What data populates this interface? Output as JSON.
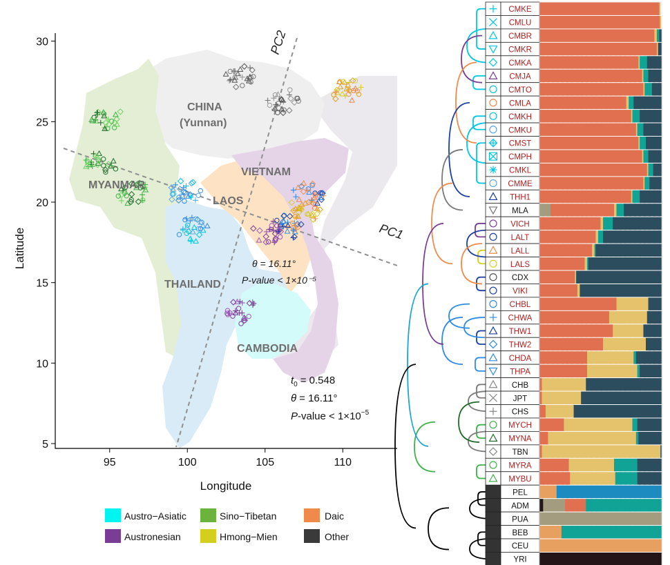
{
  "map": {
    "countries": [
      "CHINA",
      "(Yunnan)",
      "MYANMAR",
      "LAOS",
      "VIETNAM",
      "THAILAND",
      "CAMBODIA"
    ],
    "axis_labels": {
      "pc1": "PC1",
      "pc2": "PC2"
    },
    "inner_stats": {
      "theta": "θ = 16.11°",
      "pvalue": "P-value < 1×10⁻⁵"
    },
    "stats": {
      "t0": "= 0.548",
      "theta": "= 16.11°",
      "pvalue": "-value < 1×10",
      "pvalue_exp": "−5"
    }
  },
  "chart_data": {
    "type": "scatter",
    "title": "",
    "xlabel": "Longitude",
    "ylabel": "Latitude",
    "xlim": [
      91.5,
      113.5
    ],
    "ylim": [
      4.7,
      30.5
    ],
    "xticks": [
      95,
      100,
      105,
      110
    ],
    "yticks": [
      5,
      10,
      15,
      20,
      25,
      30
    ],
    "sample_clusters": [
      {
        "group": "Sino-Tibetan",
        "lon": 94.8,
        "lat": 25.3
      },
      {
        "group": "Sino-Tibetan",
        "lon": 94.5,
        "lat": 22.4
      },
      {
        "group": "Sino-Tibetan",
        "lon": 96.5,
        "lat": 20.6
      },
      {
        "group": "Other",
        "lon": 103.5,
        "lat": 27.8
      },
      {
        "group": "Other",
        "lon": 106.1,
        "lat": 26.3
      },
      {
        "group": "Austro-Asiatic",
        "lon": 99.8,
        "lat": 20.6
      },
      {
        "group": "Austro-Asiatic",
        "lon": 100.4,
        "lat": 18.3
      },
      {
        "group": "Austronesian",
        "lon": 103.6,
        "lat": 13.2
      },
      {
        "group": "Austronesian",
        "lon": 105.2,
        "lat": 18.2
      },
      {
        "group": "Daic",
        "lon": 106.5,
        "lat": 18.5
      },
      {
        "group": "Daic",
        "lon": 107.8,
        "lat": 20.5
      },
      {
        "group": "Hmong-Mien",
        "lon": 110.2,
        "lat": 27.0
      },
      {
        "group": "Hmong-Mien",
        "lon": 107.5,
        "lat": 19.5
      }
    ],
    "admixture": {
      "populations": [
        "CMKE",
        "CMLU",
        "CMBR",
        "CMKR",
        "CMKA",
        "CMJA",
        "CMTO",
        "CMLA",
        "CMKH",
        "CMKU",
        "CMST",
        "CMPH",
        "CMKL",
        "CMME",
        "THH1",
        "MLA",
        "VICH",
        "LALT",
        "LALL",
        "LALS",
        "CDX",
        "VIKI",
        "CHBL",
        "CHWA",
        "THW1",
        "THW2",
        "CHDA",
        "THPA",
        "CHB",
        "JPT",
        "CHS",
        "MYCH",
        "MYNA",
        "TBN",
        "MYRA",
        "MYBU",
        "PEL",
        "ADM",
        "PUA",
        "BEB",
        "CEU",
        "YRI"
      ]
    }
  },
  "legend": {
    "items": [
      {
        "label": "Austro−Asiatic",
        "color": "#00f5f0"
      },
      {
        "label": "Sino−Tibetan",
        "color": "#6cb33e"
      },
      {
        "label": "Daic",
        "color": "#f08a4b"
      },
      {
        "label": "Austronesian",
        "color": "#7a3d96"
      },
      {
        "label": "Hmong−Mien",
        "color": "#d4cf1f"
      },
      {
        "label": "Other",
        "color": "#3a3a3a"
      }
    ]
  },
  "colors": {
    "daic_bar": "#e07050",
    "hm_bar": "#e5c36c",
    "other_bar": "#2c4d5e",
    "teal": "#10a396",
    "khaki": "#a39c7e",
    "blue": "#1c8cc0",
    "dark": "#241618",
    "red_text": "#b21f1f"
  },
  "tree": {
    "rows": [
      {
        "code": "CMKE",
        "red": true,
        "sym": "+",
        "col": "#00c8e0"
      },
      {
        "code": "CMLU",
        "red": true,
        "sym": "x",
        "col": "#00c8e0"
      },
      {
        "code": "CMBR",
        "red": true,
        "sym": "tri",
        "col": "#00c8e0"
      },
      {
        "code": "CMKR",
        "red": true,
        "sym": "itri",
        "col": "#00c8e0"
      },
      {
        "code": "CMKA",
        "red": true,
        "sym": "dia",
        "col": "#00c8e0"
      },
      {
        "code": "CMJA",
        "red": true,
        "sym": "tri",
        "col": "#7a3d96"
      },
      {
        "code": "CMTO",
        "red": true,
        "sym": "o",
        "col": "#00c8e0"
      },
      {
        "code": "CMLA",
        "red": true,
        "sym": "o",
        "col": "#f08a4b"
      },
      {
        "code": "CMKH",
        "red": true,
        "sym": "o",
        "col": "#00c8e0"
      },
      {
        "code": "CMKU",
        "red": true,
        "sym": "o",
        "col": "#5aa7e6"
      },
      {
        "code": "CMST",
        "red": true,
        "sym": "dplus",
        "col": "#00c8e0"
      },
      {
        "code": "CMPH",
        "red": true,
        "sym": "bx",
        "col": "#00c8e0"
      },
      {
        "code": "CMKL",
        "red": true,
        "sym": "star",
        "col": "#00c8e0"
      },
      {
        "code": "CMME",
        "red": true,
        "sym": "o",
        "col": "#5aa7e6"
      },
      {
        "code": "THH1",
        "red": true,
        "sym": "tri",
        "col": "#1b3fa6"
      },
      {
        "code": "MLA",
        "red": false,
        "sym": "itri",
        "col": "#777777"
      },
      {
        "code": "VICH",
        "red": true,
        "sym": "o",
        "col": "#7a3d96"
      },
      {
        "code": "LALT",
        "red": true,
        "sym": "o",
        "col": "#1b3fa6"
      },
      {
        "code": "LALL",
        "red": true,
        "sym": "tri",
        "col": "#f08a4b"
      },
      {
        "code": "LALS",
        "red": true,
        "sym": "o",
        "col": "#d4cf1f"
      },
      {
        "code": "CDX",
        "red": false,
        "sym": "o",
        "col": "#555555"
      },
      {
        "code": "VIKI",
        "red": true,
        "sym": "o",
        "col": "#1b3fa6"
      },
      {
        "code": "CHBL",
        "red": true,
        "sym": "o",
        "col": "#2f8be8"
      },
      {
        "code": "CHWA",
        "red": true,
        "sym": "+",
        "col": "#2f8be8"
      },
      {
        "code": "THW1",
        "red": true,
        "sym": "tri",
        "col": "#1b3fa6"
      },
      {
        "code": "THW2",
        "red": true,
        "sym": "dia",
        "col": "#2f8be8"
      },
      {
        "code": "CHDA",
        "red": true,
        "sym": "tri",
        "col": "#2f8be8"
      },
      {
        "code": "THPA",
        "red": true,
        "sym": "itri",
        "col": "#2f8be8"
      },
      {
        "code": "CHB",
        "red": false,
        "sym": "tri",
        "col": "#888888"
      },
      {
        "code": "JPT",
        "red": false,
        "sym": "x",
        "col": "#888888"
      },
      {
        "code": "CHS",
        "red": false,
        "sym": "+",
        "col": "#888888"
      },
      {
        "code": "MYCH",
        "red": true,
        "sym": "o",
        "col": "#3fb14a"
      },
      {
        "code": "MYNA",
        "red": true,
        "sym": "tri",
        "col": "#1e6b2a"
      },
      {
        "code": "TBN",
        "red": false,
        "sym": "dia",
        "col": "#888888"
      },
      {
        "code": "MYRA",
        "red": true,
        "sym": "o",
        "col": "#3fb14a"
      },
      {
        "code": "MYBU",
        "red": true,
        "sym": "tri",
        "col": "#3fb14a"
      },
      {
        "code": "PEL",
        "red": false,
        "sym": "",
        "col": "#333333"
      },
      {
        "code": "ADM",
        "red": false,
        "sym": "",
        "col": "#333333"
      },
      {
        "code": "PUA",
        "red": false,
        "sym": "",
        "col": "#333333"
      },
      {
        "code": "BEB",
        "red": false,
        "sym": "",
        "col": "#333333"
      },
      {
        "code": "CEU",
        "red": false,
        "sym": "",
        "col": "#333333"
      },
      {
        "code": "YRI",
        "red": false,
        "sym": "",
        "col": "#333333"
      }
    ],
    "bar_fractions": [
      [
        [
          0.98,
          "d"
        ],
        [
          0.01,
          "y"
        ],
        [
          0.01,
          "w"
        ]
      ],
      [
        [
          0.985,
          "d"
        ],
        [
          0.01,
          "y"
        ],
        [
          0.005,
          "w"
        ]
      ],
      [
        [
          0.94,
          "d"
        ],
        [
          0.02,
          "y"
        ],
        [
          0.02,
          "t"
        ],
        [
          0.02,
          "o"
        ]
      ],
      [
        [
          0.96,
          "d"
        ],
        [
          0.01,
          "y"
        ],
        [
          0.03,
          "o"
        ]
      ],
      [
        [
          0.81,
          "d"
        ],
        [
          0.01,
          "y"
        ],
        [
          0.06,
          "t"
        ],
        [
          0.12,
          "o"
        ]
      ],
      [
        [
          0.84,
          "d"
        ],
        [
          0.01,
          "y"
        ],
        [
          0.04,
          "t"
        ],
        [
          0.11,
          "o"
        ]
      ],
      [
        [
          0.85,
          "d"
        ],
        [
          0.01,
          "y"
        ],
        [
          0.06,
          "t"
        ],
        [
          0.08,
          "o"
        ]
      ],
      [
        [
          0.71,
          "d"
        ],
        [
          0.02,
          "y"
        ],
        [
          0.04,
          "t"
        ],
        [
          0.23,
          "o"
        ]
      ],
      [
        [
          0.75,
          "d"
        ],
        [
          0.01,
          "y"
        ],
        [
          0.06,
          "t"
        ],
        [
          0.18,
          "o"
        ]
      ],
      [
        [
          0.79,
          "d"
        ],
        [
          0.01,
          "y"
        ],
        [
          0.05,
          "t"
        ],
        [
          0.15,
          "o"
        ]
      ],
      [
        [
          0.81,
          "d"
        ],
        [
          0.01,
          "y"
        ],
        [
          0.05,
          "t"
        ],
        [
          0.13,
          "o"
        ]
      ],
      [
        [
          0.84,
          "d"
        ],
        [
          0.01,
          "y"
        ],
        [
          0.04,
          "t"
        ],
        [
          0.11,
          "o"
        ]
      ],
      [
        [
          0.88,
          "d"
        ],
        [
          0.01,
          "y"
        ],
        [
          0.04,
          "t"
        ],
        [
          0.07,
          "o"
        ]
      ],
      [
        [
          0.85,
          "d"
        ],
        [
          0.01,
          "y"
        ],
        [
          0.04,
          "t"
        ],
        [
          0.1,
          "o"
        ]
      ],
      [
        [
          0.75,
          "d"
        ],
        [
          0.01,
          "y"
        ],
        [
          0.06,
          "t"
        ],
        [
          0.18,
          "o"
        ]
      ],
      [
        [
          0.09,
          "k"
        ],
        [
          0.52,
          "d"
        ],
        [
          0.02,
          "y"
        ],
        [
          0.06,
          "t"
        ],
        [
          0.31,
          "o"
        ]
      ],
      [
        [
          0.5,
          "d"
        ],
        [
          0.02,
          "y"
        ],
        [
          0.08,
          "t"
        ],
        [
          0.4,
          "o"
        ]
      ],
      [
        [
          0.46,
          "d"
        ],
        [
          0.02,
          "y"
        ],
        [
          0.04,
          "t"
        ],
        [
          0.48,
          "o"
        ]
      ],
      [
        [
          0.43,
          "d"
        ],
        [
          0.02,
          "y"
        ],
        [
          0.01,
          "t"
        ],
        [
          0.54,
          "o"
        ]
      ],
      [
        [
          0.37,
          "d"
        ],
        [
          0.02,
          "y"
        ],
        [
          0.01,
          "t"
        ],
        [
          0.6,
          "o"
        ]
      ],
      [
        [
          0.29,
          "d"
        ],
        [
          0.01,
          "y"
        ],
        [
          0.7,
          "o"
        ]
      ],
      [
        [
          0.31,
          "d"
        ],
        [
          0.02,
          "y"
        ],
        [
          0.67,
          "o"
        ]
      ],
      [
        [
          0.63,
          "d"
        ],
        [
          0.26,
          "y"
        ],
        [
          0.11,
          "o"
        ]
      ],
      [
        [
          0.57,
          "d"
        ],
        [
          0.31,
          "y"
        ],
        [
          0.12,
          "o"
        ]
      ],
      [
        [
          0.6,
          "d"
        ],
        [
          0.25,
          "y"
        ],
        [
          0.15,
          "o"
        ]
      ],
      [
        [
          0.52,
          "d"
        ],
        [
          0.35,
          "y"
        ],
        [
          0.13,
          "o"
        ]
      ],
      [
        [
          0.39,
          "d"
        ],
        [
          0.38,
          "y"
        ],
        [
          0.02,
          "t"
        ],
        [
          0.21,
          "o"
        ]
      ],
      [
        [
          0.39,
          "d"
        ],
        [
          0.41,
          "y"
        ],
        [
          0.02,
          "t"
        ],
        [
          0.18,
          "o"
        ]
      ],
      [
        [
          0.02,
          "d"
        ],
        [
          0.36,
          "y"
        ],
        [
          0.62,
          "o"
        ]
      ],
      [
        [
          0.02,
          "d"
        ],
        [
          0.32,
          "y"
        ],
        [
          0.66,
          "o"
        ]
      ],
      [
        [
          0.05,
          "d"
        ],
        [
          0.23,
          "y"
        ],
        [
          0.72,
          "o"
        ]
      ],
      [
        [
          0.2,
          "d"
        ],
        [
          0.56,
          "y"
        ],
        [
          0.04,
          "t"
        ],
        [
          0.2,
          "o"
        ]
      ],
      [
        [
          0.07,
          "d"
        ],
        [
          0.72,
          "y"
        ],
        [
          0.02,
          "t"
        ],
        [
          0.19,
          "o"
        ]
      ],
      [
        [
          0.02,
          "d"
        ],
        [
          0.97,
          "y"
        ],
        [
          0.01,
          "o"
        ]
      ],
      [
        [
          0.24,
          "d"
        ],
        [
          0.37,
          "y"
        ],
        [
          0.19,
          "t"
        ],
        [
          0.2,
          "o"
        ]
      ],
      [
        [
          0.25,
          "d"
        ],
        [
          0.37,
          "y"
        ],
        [
          0.18,
          "t"
        ],
        [
          0.2,
          "o"
        ]
      ],
      [
        [
          0.14,
          "e"
        ],
        [
          0.86,
          "b"
        ]
      ],
      [
        [
          0.03,
          "x"
        ],
        [
          0.18,
          "k"
        ],
        [
          0.17,
          "d"
        ],
        [
          0.62,
          "t"
        ]
      ],
      [
        [
          1.0,
          "k"
        ]
      ],
      [
        [
          0.18,
          "e"
        ],
        [
          0.82,
          "t"
        ]
      ],
      [
        [
          1.0,
          "e"
        ]
      ],
      [
        [
          1.0,
          "x"
        ]
      ]
    ]
  }
}
